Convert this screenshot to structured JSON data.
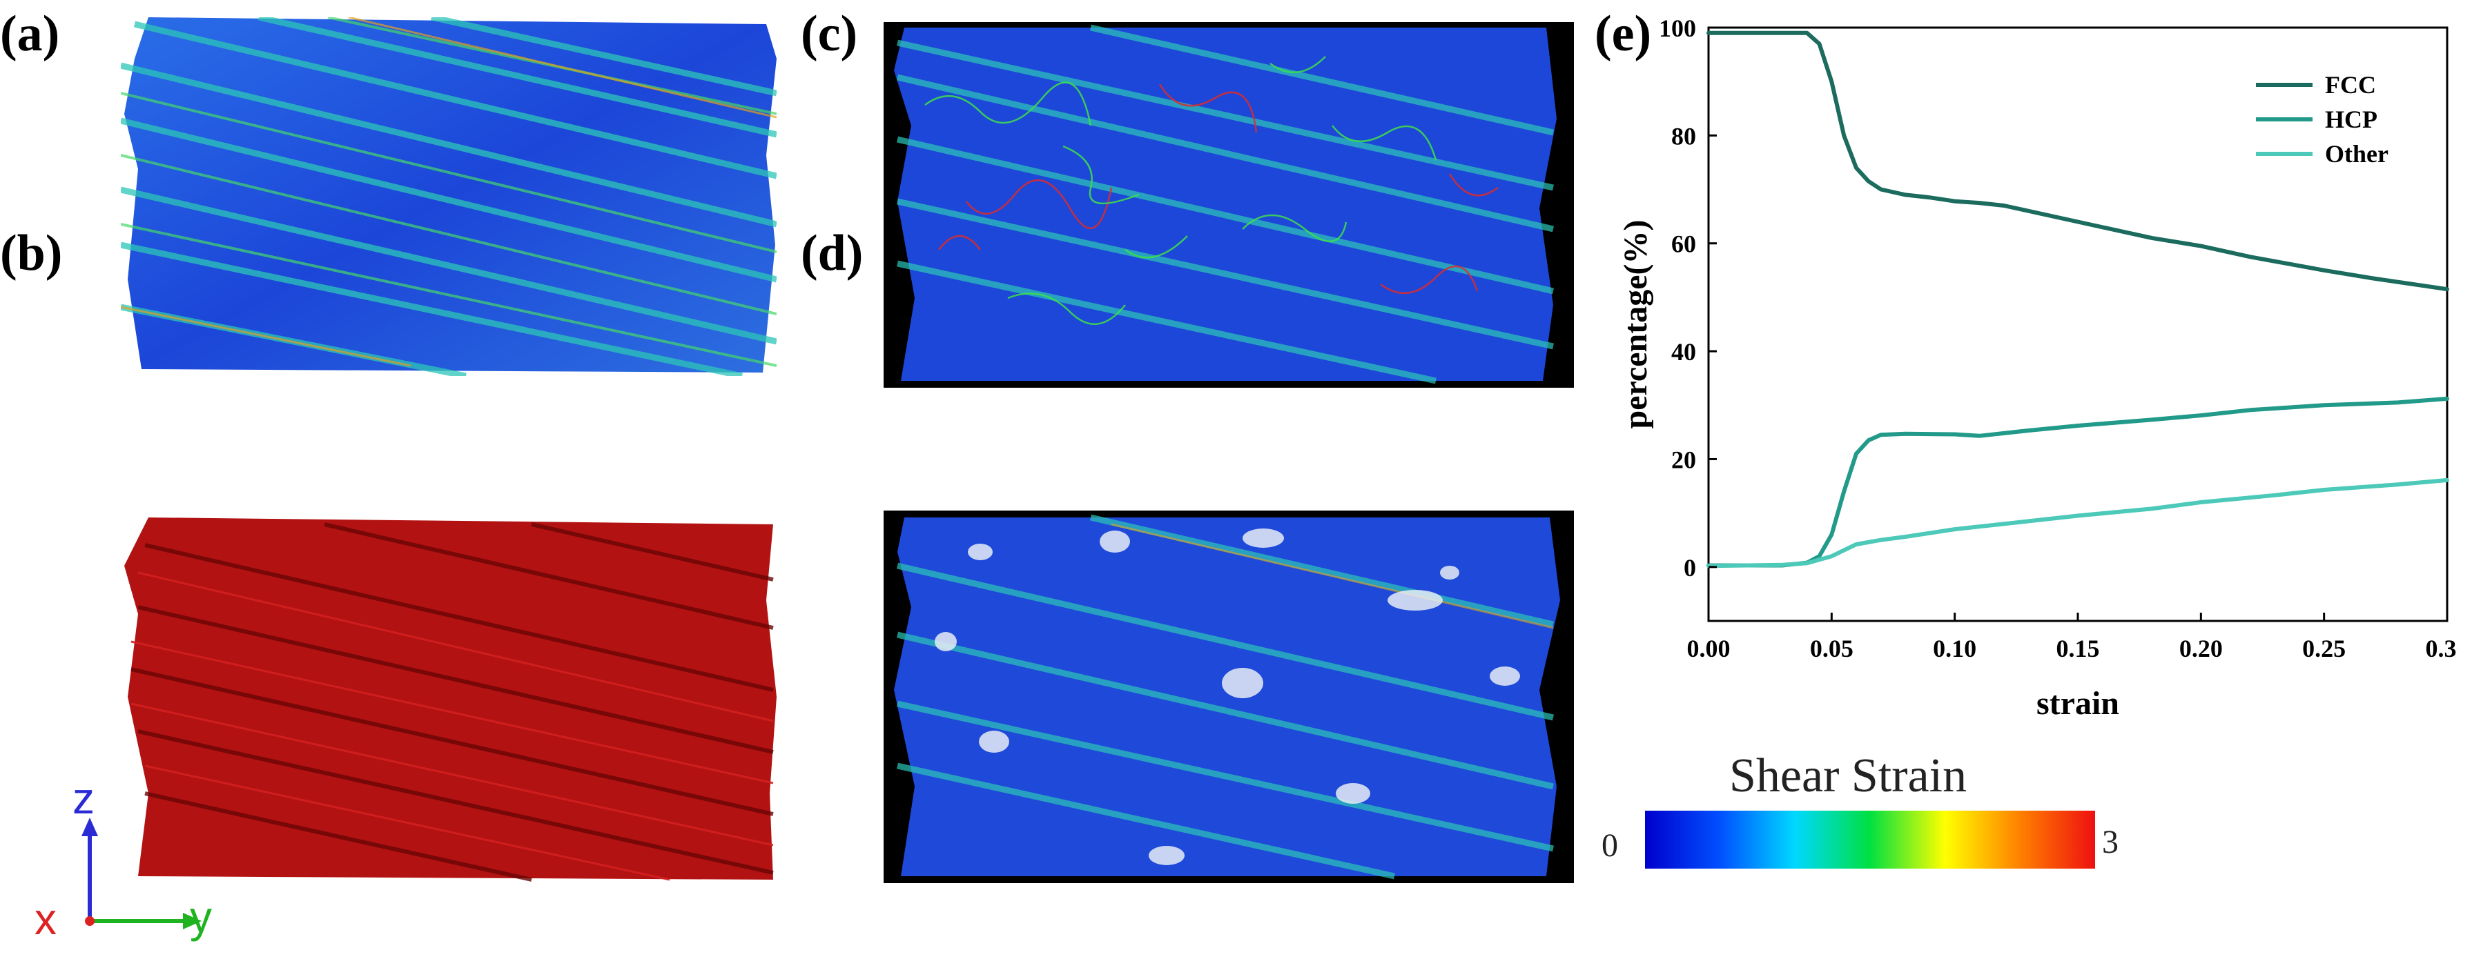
{
  "panels": {
    "a": "(a)",
    "b": "(b)",
    "c": "(c)",
    "d": "(d)",
    "e": "(e)"
  },
  "axes_triad": {
    "z": "z",
    "x": "x",
    "y": "y"
  },
  "colorbar": {
    "title": "Shear Strain",
    "min_label": "0",
    "max_label": "3",
    "colors": [
      "#0000cc",
      "#0050ff",
      "#00d8ff",
      "#00e040",
      "#ffff00",
      "#ff8000",
      "#ee1010"
    ]
  },
  "colors": {
    "fcc": "#1b6b5e",
    "hcp": "#229a8a",
    "other": "#4cc9b8",
    "sim_blue": "#1a3fd6",
    "sim_red": "#b31212"
  },
  "chart_data": {
    "type": "line",
    "title": "",
    "xlabel": "strain",
    "ylabel": "percentage(%)",
    "xlim": [
      0.0,
      0.3
    ],
    "ylim": [
      -10,
      100
    ],
    "xticks": [
      "0.00",
      "0.05",
      "0.10",
      "0.15",
      "0.20",
      "0.25",
      "0.30"
    ],
    "yticks": [
      "0",
      "20",
      "40",
      "60",
      "80",
      "100"
    ],
    "legend_position": "top-right",
    "series": [
      {
        "name": "FCC",
        "x": [
          0.0,
          0.02,
          0.04,
          0.045,
          0.05,
          0.055,
          0.06,
          0.065,
          0.07,
          0.08,
          0.09,
          0.1,
          0.11,
          0.12,
          0.15,
          0.18,
          0.2,
          0.22,
          0.25,
          0.27,
          0.3
        ],
        "y": [
          99,
          99,
          99,
          97,
          90,
          80,
          74,
          71.5,
          70,
          69,
          68.5,
          67.8,
          67.5,
          67,
          64,
          61,
          59.5,
          57.5,
          55,
          53.5,
          51.5
        ]
      },
      {
        "name": "HCP",
        "x": [
          0.0,
          0.02,
          0.03,
          0.04,
          0.045,
          0.05,
          0.055,
          0.06,
          0.065,
          0.07,
          0.08,
          0.1,
          0.11,
          0.13,
          0.15,
          0.18,
          0.2,
          0.22,
          0.25,
          0.28,
          0.3
        ],
        "y": [
          0.3,
          0.3,
          0.3,
          0.8,
          2,
          6,
          14,
          21,
          23.5,
          24.5,
          24.7,
          24.6,
          24.3,
          25.3,
          26.2,
          27.3,
          28.1,
          29.1,
          30,
          30.5,
          31.2
        ]
      },
      {
        "name": "Other",
        "x": [
          0.0,
          0.03,
          0.04,
          0.05,
          0.06,
          0.07,
          0.08,
          0.1,
          0.13,
          0.15,
          0.18,
          0.2,
          0.23,
          0.25,
          0.28,
          0.3
        ],
        "y": [
          0.2,
          0.4,
          0.7,
          2,
          4.2,
          5,
          5.6,
          7,
          8.5,
          9.5,
          10.8,
          12,
          13.3,
          14.3,
          15.3,
          16.1
        ]
      }
    ]
  }
}
